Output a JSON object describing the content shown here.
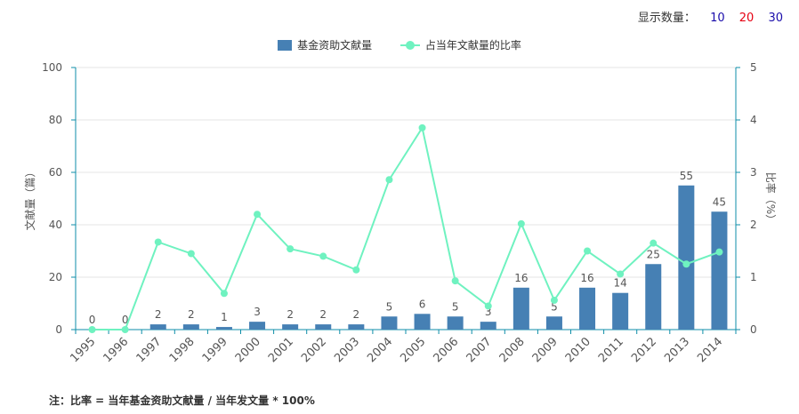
{
  "controls": {
    "display_label": "显示数量：",
    "options": [
      {
        "label": "10",
        "color": "#1a0dab"
      },
      {
        "label": "20",
        "color": "#e60012"
      },
      {
        "label": "30",
        "color": "#1a0dab"
      }
    ]
  },
  "legend": {
    "bar_label": "基金资助文献量",
    "line_label": "占当年文献量的比率"
  },
  "footnote": "注：比率 = 当年基金资助文献量 / 当年发文量 * 100%",
  "colors": {
    "bar": "#4680b4",
    "line": "#6ff2c0",
    "axis": "#0d8ea8",
    "grid": "#e6e6e6",
    "text": "#555555"
  },
  "chart_data": {
    "type": "bar",
    "categories": [
      "1995",
      "1996",
      "1997",
      "1998",
      "1999",
      "2000",
      "2001",
      "2002",
      "2003",
      "2004",
      "2005",
      "2006",
      "2007",
      "2008",
      "2009",
      "2010",
      "2011",
      "2012",
      "2013",
      "2014"
    ],
    "series": [
      {
        "name": "基金资助文献量",
        "type": "bar",
        "axis": "left",
        "values": [
          0,
          0,
          2,
          2,
          1,
          3,
          2,
          2,
          2,
          5,
          6,
          5,
          3,
          16,
          5,
          16,
          14,
          25,
          55,
          45
        ]
      },
      {
        "name": "占当年文献量的比率",
        "type": "line",
        "axis": "right",
        "values": [
          0,
          0,
          1.67,
          1.45,
          0.69,
          2.2,
          1.54,
          1.4,
          1.14,
          2.86,
          3.85,
          0.93,
          0.45,
          2.02,
          0.56,
          1.5,
          1.06,
          1.65,
          1.25,
          1.48
        ]
      }
    ],
    "ylabel": "文献量（篇）",
    "y2label": "比率（%）",
    "ylim": [
      0,
      100
    ],
    "y2lim": [
      0,
      5
    ],
    "yticks": [
      0,
      20,
      40,
      60,
      80,
      100
    ],
    "y2ticks": [
      0,
      1,
      2,
      3,
      4,
      5
    ],
    "grid": true
  }
}
